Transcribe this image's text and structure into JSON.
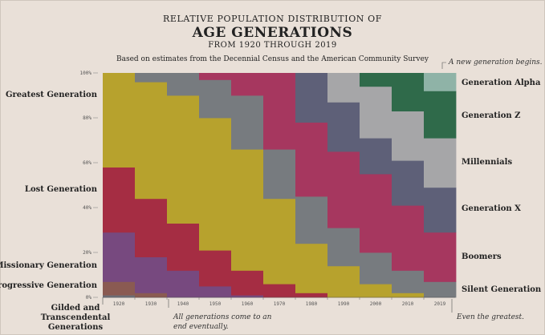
{
  "header": {
    "title_top": "RELATIVE POPULATION DISTRIBUTION OF",
    "title_main": "AGE GENERATIONS",
    "title_sub": "FROM 1920 THROUGH 2019",
    "source": "Based on estimates from the Decennial Census and the American Community Survey"
  },
  "annotations": {
    "new_generation": "A new generation begins.",
    "all_end_1": "All generations come to an",
    "all_end_2": "end eventually.",
    "even_greatest": "Even the greatest."
  },
  "chart_data": {
    "type": "area",
    "subtype": "stacked-100-percent-step",
    "x": [
      "1920",
      "1930",
      "1940",
      "1950",
      "1960",
      "1970",
      "1980",
      "1990",
      "2000",
      "2010",
      "2019"
    ],
    "yticks": [
      "0%",
      "20%",
      "40%",
      "60%",
      "80%",
      "100%"
    ],
    "ylim": [
      0,
      100
    ],
    "series": [
      {
        "name": "Gilded and Transcendental Generations",
        "color": "#6f6f78",
        "values": [
          1,
          0,
          0,
          0,
          0,
          0,
          0,
          0,
          0,
          0,
          0
        ]
      },
      {
        "name": "Progressive Generation",
        "color": "#8a5a52",
        "values": [
          6,
          2,
          0,
          0,
          0,
          0,
          0,
          0,
          0,
          0,
          0
        ]
      },
      {
        "name": "Missionary Generation",
        "color": "#77497f",
        "values": [
          22,
          16,
          12,
          5,
          1,
          0,
          0,
          0,
          0,
          0,
          0
        ]
      },
      {
        "name": "Lost Generation",
        "color": "#a52d43",
        "values": [
          29,
          26,
          21,
          16,
          11,
          6,
          2,
          0,
          0,
          0,
          0
        ]
      },
      {
        "name": "Greatest Generation",
        "color": "#b7a22d",
        "values": [
          42,
          52,
          57,
          59,
          54,
          38,
          22,
          14,
          6,
          2,
          0
        ]
      },
      {
        "name": "Silent Generation",
        "color": "#777b7f",
        "values": [
          0,
          4,
          10,
          17,
          24,
          22,
          21,
          17,
          14,
          10,
          7
        ]
      },
      {
        "name": "Boomers",
        "color": "#a6375f",
        "values": [
          0,
          0,
          0,
          3,
          10,
          34,
          33,
          34,
          35,
          29,
          22
        ]
      },
      {
        "name": "Generation X",
        "color": "#5e6078",
        "values": [
          0,
          0,
          0,
          0,
          0,
          0,
          22,
          22,
          16,
          20,
          20
        ]
      },
      {
        "name": "Millennials",
        "color": "#a6a6a8",
        "values": [
          0,
          0,
          0,
          0,
          0,
          0,
          0,
          13,
          23,
          22,
          22
        ]
      },
      {
        "name": "Generation Z",
        "color": "#2f6a4a",
        "values": [
          0,
          0,
          0,
          0,
          0,
          0,
          0,
          0,
          6,
          17,
          21
        ]
      },
      {
        "name": "Generation Alpha",
        "color": "#8fb3a7",
        "values": [
          0,
          0,
          0,
          0,
          0,
          0,
          0,
          0,
          0,
          0,
          8
        ]
      }
    ],
    "left_labels": [
      "Greatest Generation",
      "Lost Generation",
      "Missionary Generation",
      "Progressive Generation",
      "Gilded and",
      "Transcendental",
      "Generations"
    ],
    "right_labels": [
      "Generation Alpha",
      "Generation Z",
      "Millennials",
      "Generation X",
      "Boomers",
      "Silent Generation"
    ]
  }
}
